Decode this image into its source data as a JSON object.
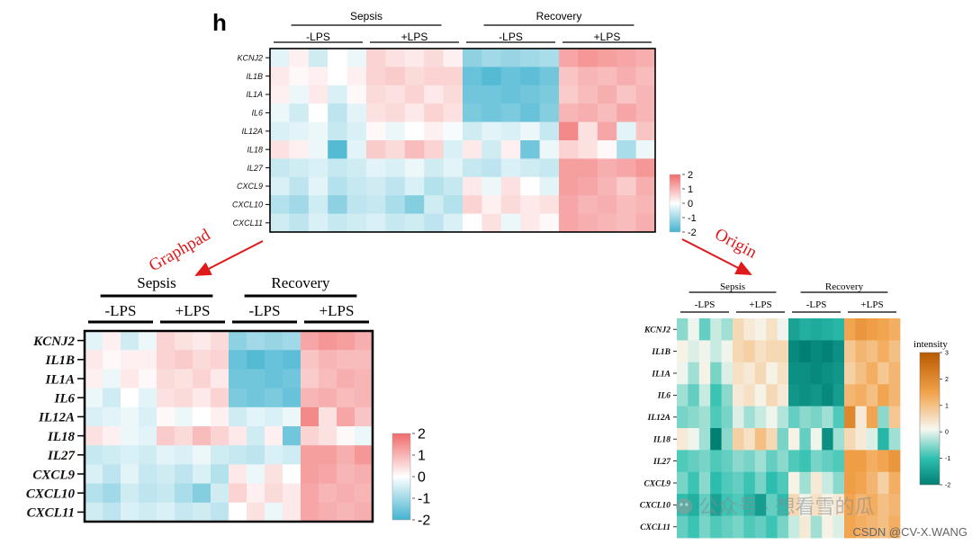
{
  "panel_label": "h",
  "arrows": {
    "left_label": "Graphpad",
    "right_label": "Origin",
    "color": "#e0191b"
  },
  "watermark": {
    "wechat": "公众号 · 想看雪的瓜",
    "csdn": "CSDN @CV-X.WANG"
  },
  "chart_data": [
    {
      "id": "original",
      "type": "heatmap",
      "rows": [
        "KCNJ2",
        "IL1B",
        "IL1A",
        "IL6",
        "IL12A",
        "IL18",
        "IL27",
        "CXCL9",
        "CXCL10",
        "CXCL11"
      ],
      "groups": [
        {
          "name": "Sepsis",
          "subgroups": [
            "-LPS",
            "+LPS"
          ]
        },
        {
          "name": "Recovery",
          "subgroups": [
            "-LPS",
            "+LPS"
          ]
        }
      ],
      "columns_per_subgroup": 5,
      "legend_ticks": [
        "2",
        "1",
        "0",
        "-1",
        "-2"
      ],
      "colormap": [
        "#42b3d0",
        "#ffffff",
        "#f06b6b"
      ],
      "vmin": -2,
      "vmax": 2
    },
    {
      "id": "graphpad",
      "type": "heatmap",
      "rows": [
        "KCNJ2",
        "IL1B",
        "IL1A",
        "IL6",
        "IL12A",
        "IL18",
        "IL27",
        "CXCL9",
        "CXCL10",
        "CXCL11"
      ],
      "groups": [
        {
          "name": "Sepsis",
          "subgroups": [
            "-LPS",
            "+LPS"
          ]
        },
        {
          "name": "Recovery",
          "subgroups": [
            "-LPS",
            "+LPS"
          ]
        }
      ],
      "columns_per_subgroup": 4,
      "legend_ticks": [
        "2",
        "1",
        "0",
        "-1",
        "-2"
      ],
      "colormap": [
        "#42b3d0",
        "#ffffff",
        "#f06b6b"
      ],
      "vmin": -2,
      "vmax": 2
    },
    {
      "id": "origin",
      "type": "heatmap",
      "rows": [
        "KCNJ2",
        "IL1B",
        "IL1A",
        "IL6",
        "IL12A",
        "IL18",
        "IL27",
        "CXCL9",
        "CXCL10",
        "CXCL11"
      ],
      "groups": [
        {
          "name": "Sepsis",
          "subgroups": [
            "-LPS",
            "+LPS"
          ]
        },
        {
          "name": "Recovery",
          "subgroups": [
            "-LPS",
            "+LPS"
          ]
        }
      ],
      "columns_per_subgroup": 5,
      "legend_title": "intensity",
      "legend_ticks": [
        "3",
        "2",
        "1",
        "0",
        "-1",
        "-2"
      ],
      "colormap": [
        "#007f73",
        "#2fc0b0",
        "#f7f7f0",
        "#f2a24a",
        "#b85a00"
      ],
      "vmin": -2,
      "vmax": 3
    }
  ],
  "heatmap_values": [
    [
      -0.3,
      0.2,
      -0.5,
      0.0,
      -0.2,
      0.6,
      0.4,
      0.3,
      0.5,
      0.2,
      -1.2,
      -1.0,
      -1.1,
      -1.0,
      -0.9,
      1.2,
      1.4,
      1.3,
      1.2,
      1.1
    ],
    [
      0.3,
      0.1,
      0.2,
      0.0,
      0.2,
      0.6,
      0.7,
      0.5,
      0.6,
      0.6,
      -1.6,
      -1.8,
      -1.6,
      -1.7,
      -1.5,
      0.8,
      1.0,
      0.9,
      1.1,
      0.9
    ],
    [
      0.2,
      -0.2,
      0.3,
      -0.4,
      0.1,
      0.5,
      0.4,
      0.6,
      0.3,
      0.5,
      -1.5,
      -1.5,
      -1.6,
      -1.5,
      -1.4,
      0.7,
      0.9,
      1.1,
      0.8,
      1.0
    ],
    [
      -0.2,
      -0.5,
      0.0,
      -0.7,
      -0.3,
      0.4,
      0.5,
      0.3,
      0.6,
      0.4,
      -1.4,
      -1.5,
      -1.4,
      -1.6,
      -1.3,
      1.0,
      1.1,
      0.9,
      1.2,
      1.0
    ],
    [
      -0.4,
      -0.3,
      -0.2,
      -0.6,
      -0.4,
      0.1,
      -0.2,
      0.0,
      0.2,
      -0.1,
      -0.5,
      -0.3,
      -0.4,
      -0.2,
      -0.6,
      1.6,
      0.4,
      1.2,
      -0.3,
      0.8
    ],
    [
      0.4,
      0.2,
      -0.2,
      -1.8,
      -0.3,
      0.7,
      0.5,
      0.9,
      0.6,
      -0.4,
      0.3,
      -0.5,
      0.2,
      -1.5,
      -0.2,
      0.6,
      0.4,
      0.1,
      -0.9,
      -0.2
    ],
    [
      -0.6,
      -0.5,
      -0.4,
      -0.6,
      -0.5,
      -0.3,
      -0.4,
      -0.2,
      -0.5,
      -0.3,
      -0.6,
      -0.7,
      -0.4,
      -0.5,
      -0.6,
      1.3,
      1.3,
      1.1,
      1.2,
      1.4
    ],
    [
      -0.4,
      -0.7,
      -0.3,
      -0.8,
      -0.6,
      -0.5,
      -0.7,
      -0.4,
      -0.8,
      -0.6,
      0.3,
      -0.2,
      0.4,
      0.0,
      -0.3,
      1.3,
      1.2,
      1.0,
      0.7,
      1.1
    ],
    [
      -0.8,
      -1.0,
      -0.5,
      -1.2,
      -0.7,
      -0.6,
      -0.9,
      -1.3,
      -0.5,
      -0.8,
      0.6,
      0.2,
      0.5,
      0.3,
      0.4,
      1.2,
      1.0,
      1.1,
      0.9,
      1.0
    ],
    [
      -0.5,
      -0.7,
      -0.4,
      -0.6,
      -0.5,
      -0.4,
      -0.6,
      -0.5,
      -0.7,
      -0.4,
      0.0,
      0.4,
      -0.2,
      0.3,
      0.1,
      1.2,
      1.1,
      1.0,
      0.9,
      1.1
    ]
  ]
}
